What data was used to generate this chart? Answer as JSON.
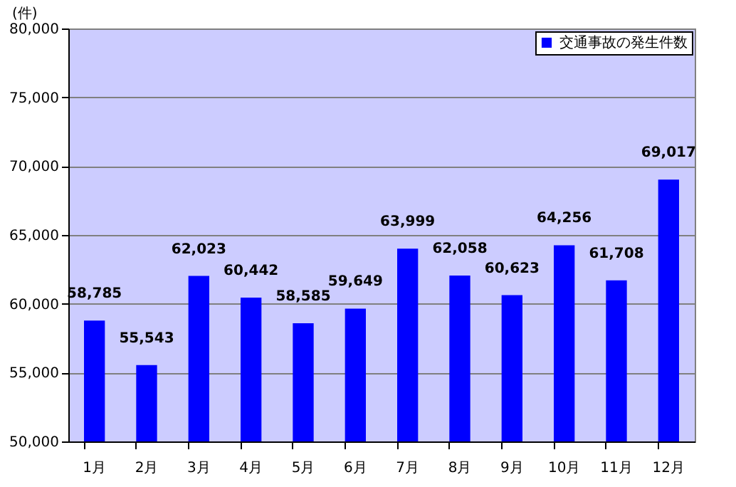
{
  "chart_data": {
    "type": "bar",
    "ylabel": "(件)",
    "categories": [
      "1月",
      "2月",
      "3月",
      "4月",
      "5月",
      "6月",
      "7月",
      "8月",
      "9月",
      "10月",
      "11月",
      "12月"
    ],
    "series": [
      {
        "name": "交通事故の発生件数",
        "color": "#0000ff",
        "values": [
          58785,
          55543,
          62023,
          60442,
          58585,
          59649,
          63999,
          62058,
          60623,
          64256,
          61708,
          69017
        ],
        "value_labels": [
          "58,785",
          "55,543",
          "62,023",
          "60,442",
          "58,585",
          "59,649",
          "63,999",
          "62,058",
          "60,623",
          "64,256",
          "61,708",
          "69,017"
        ]
      }
    ],
    "ylim": [
      50000,
      80000
    ],
    "yticks": [
      {
        "value": 50000,
        "label": "50,000"
      },
      {
        "value": 55000,
        "label": "55,000"
      },
      {
        "value": 60000,
        "label": "60,000"
      },
      {
        "value": 65000,
        "label": "65,000"
      },
      {
        "value": 70000,
        "label": "70,000"
      },
      {
        "value": 75000,
        "label": "75,000"
      },
      {
        "value": 80000,
        "label": "80,000"
      }
    ],
    "grid": "y",
    "legend": "top right"
  }
}
